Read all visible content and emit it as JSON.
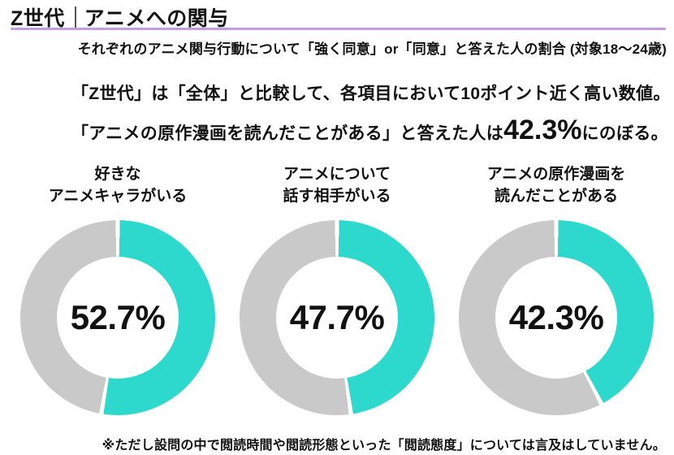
{
  "page": {
    "title": {
      "main": "Z世代",
      "rest": "アニメへの関与"
    },
    "subtitle": "それぞれのアニメ関与行動について「強く同意」or「同意」と答えた人の割合 (対象18～24歳)",
    "description": {
      "line1": "「Z世代」は「全体」と比較して、各項目において10ポイント近く高い数値。",
      "line2_prefix": "「アニメの原作漫画を読んだことがある」と答えた人は",
      "line2_highlight": "42.3%",
      "line2_suffix": "にのぼる。"
    },
    "footnote": "※ただし設問の中で閲読時間や閲読形態といった「閲読態度」については言及はしていません。",
    "colors": {
      "underline_purple": "#c49bdb",
      "text": "#111111"
    }
  },
  "chart_data": {
    "type": "pie",
    "variant": "donut",
    "unit": "percent",
    "start_angle": "top",
    "direction": "clockwise",
    "segment_gap_white": true,
    "colors": {
      "value": "#2dd8cd",
      "remainder": "#c9c9c9"
    },
    "items": [
      {
        "label_line1": "好きな",
        "label_line2": "アニメキャラがいる",
        "value": 52.7,
        "display": "52.7%"
      },
      {
        "label_line1": "アニメについて",
        "label_line2": "話す相手がいる",
        "value": 47.7,
        "display": "47.7%"
      },
      {
        "label_line1": "アニメの原作漫画を",
        "label_line2": "読んだことがある",
        "value": 42.3,
        "display": "42.3%"
      }
    ]
  }
}
